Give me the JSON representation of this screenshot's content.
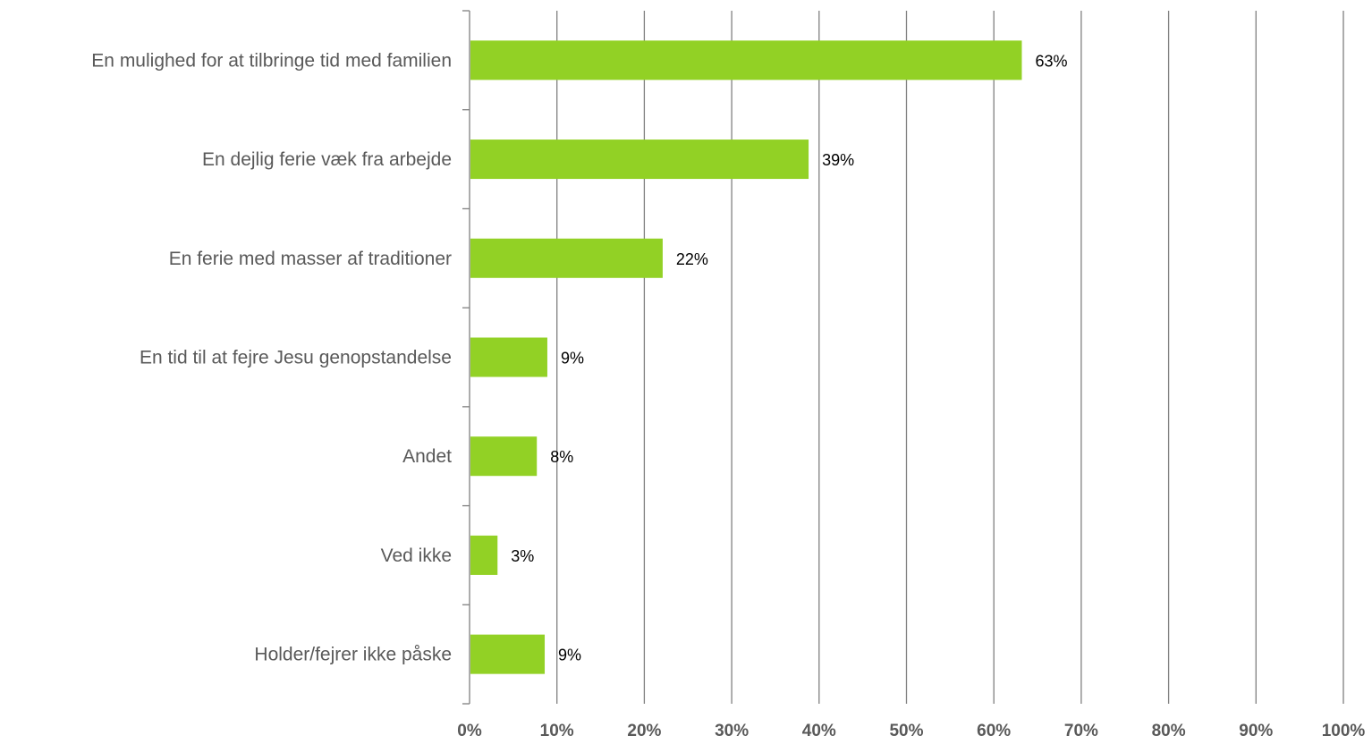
{
  "chart_data": {
    "type": "bar",
    "orientation": "horizontal",
    "categories": [
      "En mulighed for at tilbringe tid med familien",
      "En dejlig ferie væk fra arbejde",
      "En ferie med masser af traditioner",
      "En tid til at fejre Jesu genopstandelse",
      "Andet",
      "Ved ikke",
      "Holder/fejrer ikke påske"
    ],
    "values": [
      63.2,
      38.8,
      22.1,
      8.9,
      7.7,
      3.2,
      8.6
    ],
    "data_labels": [
      "63%",
      "39%",
      "22%",
      "9%",
      "8%",
      "3%",
      "9%"
    ],
    "xlim": [
      0,
      100
    ],
    "x_ticks": [
      "0%",
      "10%",
      "20%",
      "30%",
      "40%",
      "50%",
      "60%",
      "70%",
      "80%",
      "90%",
      "100%"
    ],
    "x_tick_values": [
      0,
      10,
      20,
      30,
      40,
      50,
      60,
      70,
      80,
      90,
      100
    ],
    "grid": "vertical",
    "legend": "none",
    "colors": {
      "bar": "#92d125",
      "grid": "#808080",
      "axis": "#808080",
      "category_text": "#595959",
      "tick_text": "#595959",
      "data_label_text": "#000000"
    }
  }
}
